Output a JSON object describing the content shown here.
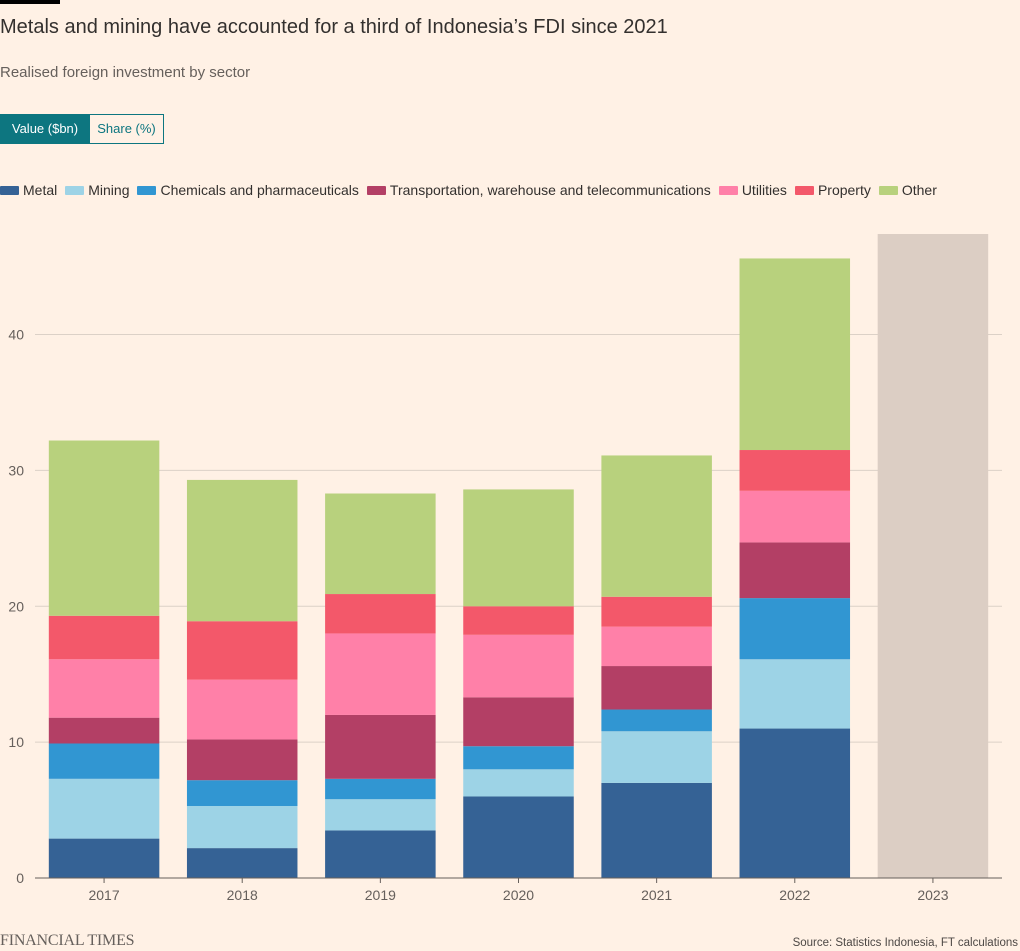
{
  "header": {
    "title": "Metals and mining have accounted for a third of Indonesia’s FDI since 2021",
    "subtitle": "Realised foreign investment by sector"
  },
  "toggle": {
    "options": [
      "Value ($bn)",
      "Share (%)"
    ],
    "selected": 0
  },
  "colors": {
    "background": "#fff1e5",
    "accent": "#0d7680"
  },
  "chart_data": {
    "type": "bar",
    "stacked": true,
    "categories": [
      "2017",
      "2018",
      "2019",
      "2020",
      "2021",
      "2022",
      "2023"
    ],
    "series": [
      {
        "name": "Metal",
        "color": "#356295",
        "values": [
          2.9,
          2.2,
          3.5,
          6.0,
          7.0,
          11.0,
          null
        ]
      },
      {
        "name": "Mining",
        "color": "#9dd3e6",
        "values": [
          4.4,
          3.1,
          2.3,
          2.0,
          3.8,
          5.1,
          null
        ]
      },
      {
        "name": "Chemicals and pharmaceuticals",
        "color": "#3196d2",
        "values": [
          2.6,
          1.9,
          1.5,
          1.7,
          1.6,
          4.5,
          null
        ]
      },
      {
        "name": "Transportation, warehouse and telecommunications",
        "color": "#b33f65",
        "values": [
          1.9,
          3.0,
          4.7,
          3.6,
          3.2,
          4.1,
          null
        ]
      },
      {
        "name": "Utilities",
        "color": "#ff80a8",
        "values": [
          4.3,
          4.4,
          6.0,
          4.6,
          2.9,
          3.8,
          null
        ]
      },
      {
        "name": "Property",
        "color": "#f3586a",
        "values": [
          3.2,
          4.3,
          2.9,
          2.1,
          2.2,
          3.0,
          null
        ]
      },
      {
        "name": "Other",
        "color": "#b8d17d",
        "values": [
          12.9,
          10.4,
          7.4,
          8.6,
          10.4,
          14.1,
          null
        ]
      },
      {
        "color": "#dccec4",
        "values": [
          null,
          null,
          null,
          null,
          null,
          null,
          47.4
        ]
      }
    ],
    "yticks": [
      0,
      10,
      20,
      30,
      40
    ],
    "ylim": [
      0,
      47.4
    ],
    "grid": true,
    "legend_position": "top-left"
  },
  "footer": {
    "logo": "FINANCIAL TIMES",
    "source": "Source: Statistics Indonesia, FT calculations"
  }
}
